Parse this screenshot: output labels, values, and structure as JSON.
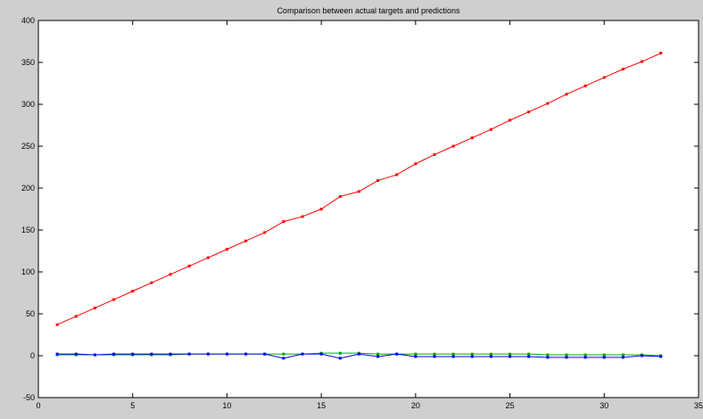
{
  "chart_data": {
    "type": "line",
    "title": "Comparison between actual targets and predictions",
    "xlabel": "",
    "ylabel": "",
    "xlim": [
      0,
      35
    ],
    "ylim": [
      -50,
      400
    ],
    "x_ticks": [
      "0",
      "5",
      "10",
      "15",
      "20",
      "25",
      "30",
      "35"
    ],
    "y_ticks": [
      "-50",
      "0",
      "50",
      "100",
      "150",
      "200",
      "250",
      "300",
      "350",
      "400"
    ],
    "grid": false,
    "legend": null,
    "x": [
      1,
      2,
      3,
      4,
      5,
      6,
      7,
      8,
      9,
      10,
      11,
      12,
      13,
      14,
      15,
      16,
      17,
      18,
      19,
      20,
      21,
      22,
      23,
      24,
      25,
      26,
      27,
      28,
      29,
      30,
      31,
      32,
      33
    ],
    "series": [
      {
        "color": "#ff0000",
        "marker": "dot",
        "values": [
          37,
          47,
          57,
          67,
          77,
          87,
          97,
          107,
          117,
          127,
          137,
          147,
          160,
          166,
          175,
          190,
          196,
          209,
          216,
          229,
          240,
          250,
          260,
          270,
          281,
          291,
          301,
          312,
          322,
          332,
          342,
          351,
          361
        ]
      },
      {
        "color": "#00aa00",
        "marker": "dot",
        "values": [
          1,
          1,
          1,
          1,
          1,
          1,
          1,
          2,
          2,
          2,
          2,
          2,
          2,
          2,
          3,
          3,
          3,
          2,
          2,
          2,
          2,
          2,
          2,
          2,
          2,
          2,
          1,
          1,
          1,
          1,
          1,
          1,
          0
        ]
      },
      {
        "color": "#0000ff",
        "marker": "dot",
        "values": [
          2,
          2,
          1,
          2,
          2,
          2,
          2,
          2,
          2,
          2,
          2,
          2,
          -3,
          2,
          2,
          -3,
          2,
          -1,
          2,
          -1,
          -1,
          -1,
          -1,
          -1,
          -1,
          -1,
          -2,
          -2,
          -2,
          -2,
          -2,
          0,
          -1
        ]
      }
    ]
  }
}
